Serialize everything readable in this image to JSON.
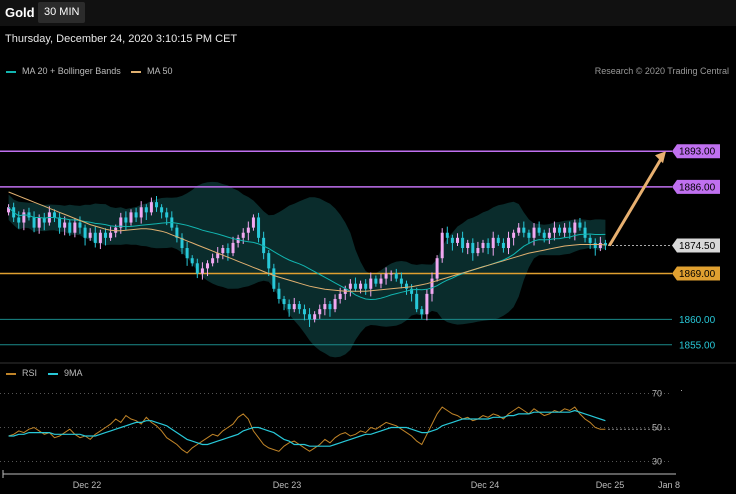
{
  "header": {
    "symbol": "Gold",
    "timeframe": "30 MIN"
  },
  "datetime": "Thursday, December 24, 2020 3:10:15 PM CET",
  "legend": {
    "ma20_label": "MA 20 + Bollinger Bands",
    "ma20_color": "#12b5b0",
    "ma50_label": "MA 50",
    "ma50_color": "#e0b070",
    "copyright": "Research © 2020 Trading Central"
  },
  "rsi_legend": {
    "rsi_label": "RSI",
    "rsi_color": "#c08428",
    "ma_label": "9MA",
    "ma_color": "#28c8d8"
  },
  "colors": {
    "up": "#f2a8f2",
    "down": "#28c8d8",
    "resistance": "#c070f0",
    "support": "#e0a030",
    "support2": "#1a8a8a"
  },
  "chart_data": [
    {
      "type": "candlestick",
      "price_axis_range": [
        1853,
        1906
      ],
      "levels": [
        {
          "value": 1893.0,
          "label": "1893.00",
          "kind": "resistance"
        },
        {
          "value": 1886.0,
          "label": "1886.00",
          "kind": "resistance"
        },
        {
          "value": 1874.5,
          "label": "1874.50",
          "kind": "current"
        },
        {
          "value": 1869.0,
          "label": "1869.00",
          "kind": "pivot"
        },
        {
          "value": 1860.0,
          "label": "1860.00",
          "kind": "support"
        },
        {
          "value": 1855.0,
          "label": "1855.00",
          "kind": "support"
        }
      ],
      "forecast": {
        "from": 1874.5,
        "to": 1893.0
      },
      "x_labels": [
        "Dec 22",
        "Dec 23",
        "Dec 24",
        "Dec 25",
        "Jan 8"
      ],
      "close": [
        1882,
        1880,
        1879,
        1881,
        1880,
        1878,
        1880,
        1879,
        1881,
        1880,
        1878,
        1879,
        1877,
        1879,
        1878,
        1876,
        1877,
        1875,
        1877,
        1876,
        1877,
        1878,
        1880,
        1879,
        1881,
        1880,
        1882,
        1881,
        1883,
        1882,
        1881,
        1880,
        1878,
        1876,
        1874,
        1872,
        1871,
        1869,
        1870,
        1871,
        1872,
        1873,
        1874,
        1873,
        1875,
        1876,
        1877,
        1878,
        1880,
        1876,
        1873,
        1870,
        1866,
        1864,
        1863,
        1862,
        1863,
        1862,
        1861,
        1860,
        1861,
        1862,
        1863,
        1862,
        1864,
        1865,
        1866,
        1867,
        1866,
        1867,
        1866,
        1868,
        1867,
        1868,
        1869,
        1869,
        1868,
        1867,
        1866,
        1865,
        1862,
        1861,
        1865,
        1868,
        1872,
        1877,
        1876,
        1875,
        1876,
        1874,
        1875,
        1873,
        1874,
        1875,
        1874,
        1876,
        1875,
        1874,
        1876,
        1877,
        1878,
        1877,
        1876,
        1878,
        1877,
        1876,
        1877,
        1878,
        1877,
        1878,
        1877,
        1879,
        1878,
        1876,
        1875,
        1874,
        1875,
        1874.5
      ],
      "ma50": [
        1885,
        1884.6,
        1884.2,
        1883.8,
        1883.4,
        1883,
        1882.6,
        1882.2,
        1881.8,
        1881.4,
        1881,
        1880.6,
        1880.2,
        1879.8,
        1879.4,
        1879,
        1878.6,
        1878.3,
        1878,
        1877.7,
        1877.5,
        1877.4,
        1877.4,
        1877.5,
        1877.6,
        1877.7,
        1877.8,
        1877.8,
        1877.7,
        1877.5,
        1877.3,
        1877,
        1876.6,
        1876.2,
        1875.8,
        1875.4,
        1875,
        1874.6,
        1874.2,
        1873.8,
        1873.4,
        1873,
        1872.6,
        1872.2,
        1871.8,
        1871.4,
        1871,
        1870.6,
        1870.2,
        1869.8,
        1869.4,
        1869,
        1868.6,
        1868.3,
        1868,
        1867.7,
        1867.4,
        1867.1,
        1866.8,
        1866.5,
        1866.3,
        1866.1,
        1865.9,
        1865.8,
        1865.7,
        1865.6,
        1865.5,
        1865.5,
        1865.5,
        1865.5,
        1865.5,
        1865.6,
        1865.7,
        1865.8,
        1865.9,
        1866,
        1866.1,
        1866.2,
        1866.3,
        1866.4,
        1866.6,
        1866.8,
        1867,
        1867.3,
        1867.6,
        1867.9,
        1868.2,
        1868.5,
        1868.8,
        1869.1,
        1869.4,
        1869.7,
        1870,
        1870.3,
        1870.6,
        1870.9,
        1871.2,
        1871.5,
        1871.8,
        1872.1,
        1872.4,
        1872.7,
        1873,
        1873.2,
        1873.4,
        1873.6,
        1873.8,
        1874,
        1874.2,
        1874.4,
        1874.5,
        1874.6,
        1874.7,
        1874.7,
        1874.7,
        1874.7,
        1874.7,
        1874.6
      ],
      "rsi_axis_range": [
        25,
        75
      ],
      "rsi_ticks": [
        70,
        50,
        30
      ],
      "rsi": [
        45,
        46,
        48,
        47,
        49,
        50,
        48,
        46,
        47,
        44,
        45,
        47,
        49,
        46,
        44,
        45,
        43,
        46,
        48,
        50,
        52,
        55,
        53,
        57,
        55,
        54,
        52,
        56,
        53,
        51,
        48,
        44,
        42,
        40,
        37,
        35,
        38,
        40,
        42,
        44,
        46,
        45,
        48,
        50,
        52,
        56,
        58,
        55,
        48,
        44,
        40,
        38,
        37,
        36,
        39,
        41,
        42,
        40,
        38,
        36,
        38,
        40,
        43,
        41,
        44,
        46,
        47,
        45,
        46,
        48,
        47,
        50,
        49,
        51,
        53,
        52,
        51,
        49,
        47,
        45,
        42,
        40,
        46,
        52,
        58,
        62,
        60,
        58,
        57,
        55,
        56,
        54,
        55,
        57,
        56,
        58,
        57,
        55,
        58,
        60,
        62,
        60,
        58,
        61,
        59,
        57,
        58,
        60,
        59,
        61,
        60,
        62,
        58,
        55,
        53,
        50,
        49,
        49
      ],
      "rsi_ma9": [
        45,
        45,
        46,
        46,
        47,
        47,
        47,
        47,
        47,
        46,
        46,
        46,
        46,
        46,
        46,
        45,
        45,
        45,
        46,
        47,
        48,
        49,
        50,
        51,
        52,
        53,
        53,
        54,
        54,
        53,
        52,
        51,
        49,
        47,
        45,
        43,
        42,
        41,
        40,
        40,
        41,
        42,
        43,
        44,
        45,
        46,
        48,
        49,
        50,
        50,
        49,
        48,
        47,
        45,
        43,
        42,
        40,
        40,
        40,
        39,
        39,
        39,
        39,
        39,
        40,
        41,
        42,
        43,
        44,
        45,
        46,
        46,
        47,
        48,
        49,
        50,
        50,
        50,
        50,
        49,
        48,
        47,
        47,
        48,
        49,
        51,
        52,
        53,
        54,
        55,
        55,
        55,
        55,
        55,
        55,
        56,
        56,
        56,
        57,
        57,
        58,
        58,
        58,
        59,
        59,
        59,
        59,
        59,
        59,
        59,
        59,
        60,
        59,
        58,
        57,
        56,
        55,
        54
      ]
    }
  ]
}
